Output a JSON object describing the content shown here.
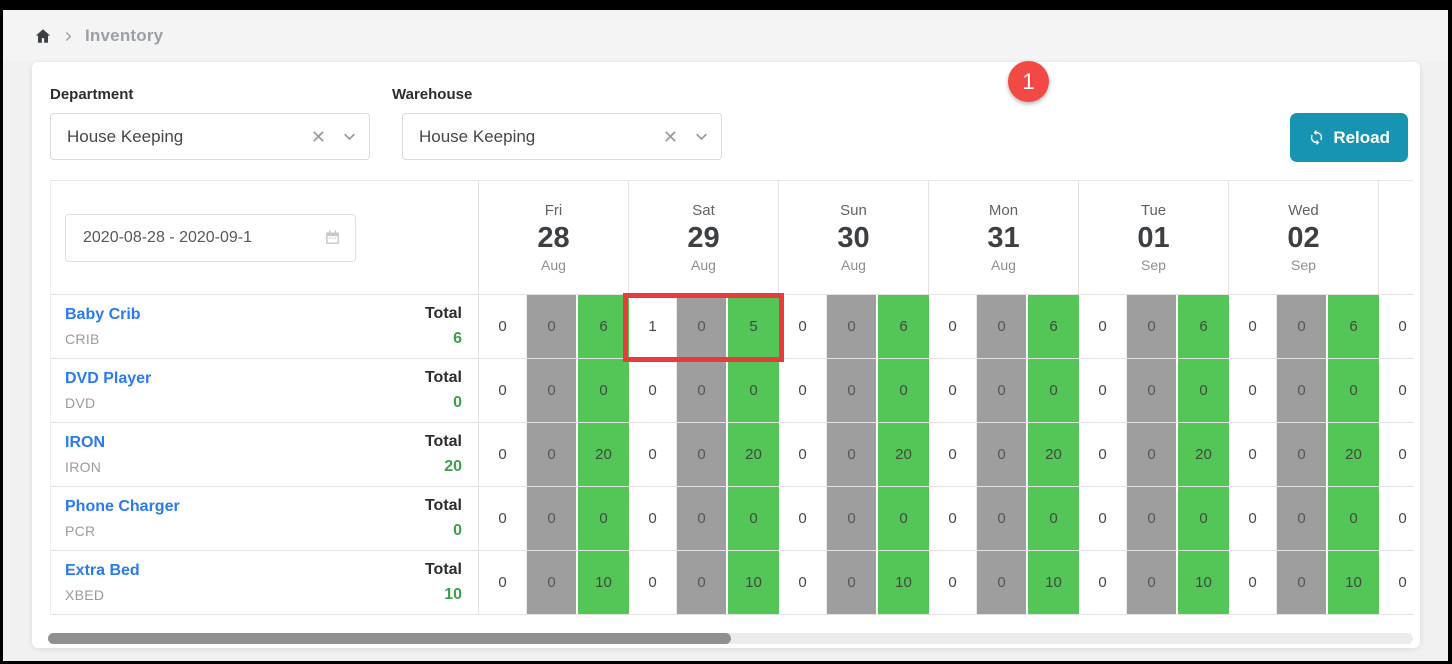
{
  "breadcrumb": {
    "current": "Inventory"
  },
  "filters": {
    "department": {
      "label": "Department",
      "value": "House Keeping"
    },
    "warehouse": {
      "label": "Warehouse",
      "value": "House Keeping"
    }
  },
  "toolbar": {
    "reload_label": "Reload"
  },
  "annotation": {
    "badge": "1"
  },
  "table": {
    "date_range": "2020-08-28 - 2020-09-1",
    "total_label": "Total",
    "columns": [
      {
        "weekday": "Fri",
        "day": "28",
        "month": "Aug"
      },
      {
        "weekday": "Sat",
        "day": "29",
        "month": "Aug"
      },
      {
        "weekday": "Sun",
        "day": "30",
        "month": "Aug"
      },
      {
        "weekday": "Mon",
        "day": "31",
        "month": "Aug"
      },
      {
        "weekday": "Tue",
        "day": "01",
        "month": "Sep"
      },
      {
        "weekday": "Wed",
        "day": "02",
        "month": "Sep"
      }
    ],
    "rows": [
      {
        "name": "Baby Crib",
        "code": "CRIB",
        "total": "6",
        "days": [
          [
            "0",
            "0",
            "6"
          ],
          [
            "1",
            "0",
            "5"
          ],
          [
            "0",
            "0",
            "6"
          ],
          [
            "0",
            "0",
            "6"
          ],
          [
            "0",
            "0",
            "6"
          ],
          [
            "0",
            "0",
            "6"
          ]
        ],
        "next": "0"
      },
      {
        "name": "DVD Player",
        "code": "DVD",
        "total": "0",
        "days": [
          [
            "0",
            "0",
            "0"
          ],
          [
            "0",
            "0",
            "0"
          ],
          [
            "0",
            "0",
            "0"
          ],
          [
            "0",
            "0",
            "0"
          ],
          [
            "0",
            "0",
            "0"
          ],
          [
            "0",
            "0",
            "0"
          ]
        ],
        "next": "0"
      },
      {
        "name": "IRON",
        "code": "IRON",
        "total": "20",
        "days": [
          [
            "0",
            "0",
            "20"
          ],
          [
            "0",
            "0",
            "20"
          ],
          [
            "0",
            "0",
            "20"
          ],
          [
            "0",
            "0",
            "20"
          ],
          [
            "0",
            "0",
            "20"
          ],
          [
            "0",
            "0",
            "20"
          ]
        ],
        "next": "0"
      },
      {
        "name": "Phone Charger",
        "code": "PCR",
        "total": "0",
        "days": [
          [
            "0",
            "0",
            "0"
          ],
          [
            "0",
            "0",
            "0"
          ],
          [
            "0",
            "0",
            "0"
          ],
          [
            "0",
            "0",
            "0"
          ],
          [
            "0",
            "0",
            "0"
          ],
          [
            "0",
            "0",
            "0"
          ]
        ],
        "next": "0"
      },
      {
        "name": "Extra Bed",
        "code": "XBED",
        "total": "10",
        "days": [
          [
            "0",
            "0",
            "10"
          ],
          [
            "0",
            "0",
            "10"
          ],
          [
            "0",
            "0",
            "10"
          ],
          [
            "0",
            "0",
            "10"
          ],
          [
            "0",
            "0",
            "10"
          ],
          [
            "0",
            "0",
            "10"
          ]
        ],
        "next": "0"
      }
    ],
    "highlight": {
      "row_index": 0,
      "day_index": 1
    }
  },
  "colors": {
    "teal": "#1694b2",
    "badge_red": "#f24945",
    "highlight_red": "#e83c3c",
    "cell_green": "#54c658",
    "cell_gray": "#9e9e9e",
    "link_blue": "#2b7af0",
    "total_green": "#3f9e49"
  }
}
